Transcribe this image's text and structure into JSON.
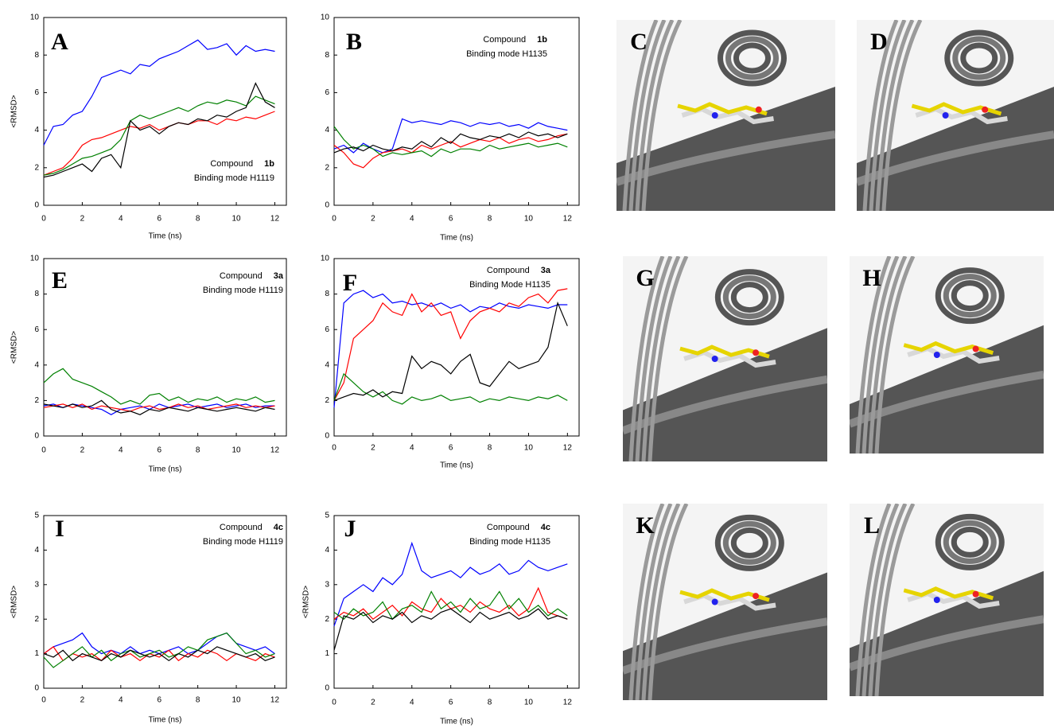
{
  "chart_data": [
    {
      "type": "line",
      "letter": "A",
      "y_label": "<RMSD>",
      "x_label": "Time (ns)",
      "annotation": {
        "compound_label": "Compound",
        "compound": "1b",
        "mode": "Binding mode H1119"
      },
      "x": [
        0,
        0.5,
        1,
        1.5,
        2,
        2.5,
        3,
        3.5,
        4,
        4.5,
        5,
        5.5,
        6,
        6.5,
        7,
        7.5,
        8,
        8.5,
        9,
        9.5,
        10,
        10.5,
        11,
        11.5,
        12
      ],
      "xlim": [
        0,
        12.6
      ],
      "xticks": [
        0,
        2,
        4,
        6,
        8,
        10,
        12
      ],
      "ylim": [
        0,
        10
      ],
      "yticks": [
        0,
        2,
        4,
        6,
        8,
        10
      ],
      "series": [
        {
          "color": "#0000ff",
          "values": [
            3.2,
            4.2,
            4.3,
            4.8,
            5.0,
            5.8,
            6.8,
            7.0,
            7.2,
            7.0,
            7.5,
            7.4,
            7.8,
            8.0,
            8.2,
            8.5,
            8.8,
            8.3,
            8.4,
            8.6,
            8.0,
            8.5,
            8.2,
            8.3,
            8.2
          ]
        },
        {
          "color": "#ff0000",
          "values": [
            1.6,
            1.8,
            2.0,
            2.5,
            3.2,
            3.5,
            3.6,
            3.8,
            4.0,
            4.2,
            4.1,
            4.3,
            4.0,
            4.2,
            4.4,
            4.3,
            4.5,
            4.5,
            4.3,
            4.6,
            4.5,
            4.7,
            4.6,
            4.8,
            5.0
          ]
        },
        {
          "color": "#008000",
          "values": [
            1.6,
            1.7,
            1.9,
            2.2,
            2.5,
            2.6,
            2.8,
            3.0,
            3.5,
            4.5,
            4.8,
            4.6,
            4.8,
            5.0,
            5.2,
            5.0,
            5.3,
            5.5,
            5.4,
            5.6,
            5.5,
            5.3,
            5.8,
            5.6,
            5.4
          ]
        },
        {
          "color": "#000000",
          "values": [
            1.5,
            1.6,
            1.8,
            2.0,
            2.2,
            1.8,
            2.5,
            2.7,
            2.0,
            4.5,
            4.0,
            4.2,
            3.8,
            4.2,
            4.4,
            4.3,
            4.6,
            4.5,
            4.8,
            4.7,
            5.0,
            5.2,
            6.5,
            5.5,
            5.2
          ]
        }
      ]
    },
    {
      "type": "line",
      "letter": "B",
      "x_label": "Time (ns)",
      "annotation": {
        "compound_label": "Compound",
        "compound": "1b",
        "mode": "Binding mode H1135"
      },
      "x": [
        0,
        0.5,
        1,
        1.5,
        2,
        2.5,
        3,
        3.5,
        4,
        4.5,
        5,
        5.5,
        6,
        6.5,
        7,
        7.5,
        8,
        8.5,
        9,
        9.5,
        10,
        10.5,
        11,
        11.5,
        12
      ],
      "xlim": [
        0,
        12.6
      ],
      "xticks": [
        0,
        2,
        4,
        6,
        8,
        10,
        12
      ],
      "ylim": [
        0,
        10
      ],
      "yticks": [
        0,
        2,
        4,
        6,
        8,
        10
      ],
      "series": [
        {
          "color": "#0000ff",
          "values": [
            3.0,
            3.2,
            2.8,
            3.3,
            3.0,
            2.8,
            3.0,
            4.6,
            4.4,
            4.5,
            4.4,
            4.3,
            4.5,
            4.4,
            4.2,
            4.4,
            4.3,
            4.4,
            4.2,
            4.3,
            4.1,
            4.4,
            4.2,
            4.1,
            4.0
          ]
        },
        {
          "color": "#ff0000",
          "values": [
            3.2,
            2.8,
            2.2,
            2.0,
            2.5,
            2.8,
            2.9,
            3.0,
            2.8,
            3.2,
            3.0,
            3.2,
            3.4,
            3.1,
            3.3,
            3.5,
            3.4,
            3.6,
            3.3,
            3.5,
            3.6,
            3.4,
            3.5,
            3.7,
            3.8
          ]
        },
        {
          "color": "#008000",
          "values": [
            4.2,
            3.5,
            3.0,
            3.2,
            3.0,
            2.6,
            2.8,
            2.7,
            2.8,
            2.9,
            2.6,
            3.0,
            2.8,
            3.0,
            3.0,
            2.9,
            3.2,
            3.0,
            3.1,
            3.2,
            3.3,
            3.1,
            3.2,
            3.3,
            3.1
          ]
        },
        {
          "color": "#000000",
          "values": [
            2.8,
            3.0,
            3.1,
            2.9,
            3.2,
            3.0,
            2.9,
            3.1,
            3.0,
            3.4,
            3.1,
            3.6,
            3.3,
            3.8,
            3.6,
            3.5,
            3.7,
            3.6,
            3.8,
            3.6,
            3.9,
            3.7,
            3.8,
            3.6,
            3.8
          ]
        }
      ]
    },
    {
      "type": "line",
      "letter": "E",
      "y_label": "<RMSD>",
      "x_label": "Time (ns)",
      "annotation": {
        "compound_label": "Compound",
        "compound": "3a",
        "mode": "Binding mode H1119"
      },
      "x": [
        0,
        0.5,
        1,
        1.5,
        2,
        2.5,
        3,
        3.5,
        4,
        4.5,
        5,
        5.5,
        6,
        6.5,
        7,
        7.5,
        8,
        8.5,
        9,
        9.5,
        10,
        10.5,
        11,
        11.5,
        12
      ],
      "xlim": [
        0,
        12.6
      ],
      "xticks": [
        0,
        2,
        4,
        6,
        8,
        10,
        12
      ],
      "ylim": [
        0,
        10
      ],
      "yticks": [
        0,
        2,
        4,
        6,
        8,
        10
      ],
      "series": [
        {
          "color": "#0000ff",
          "values": [
            1.7,
            1.8,
            1.6,
            1.8,
            1.7,
            1.6,
            1.5,
            1.2,
            1.5,
            1.6,
            1.7,
            1.5,
            1.8,
            1.6,
            1.7,
            1.8,
            1.6,
            1.7,
            1.8,
            1.6,
            1.7,
            1.8,
            1.6,
            1.7,
            1.7
          ]
        },
        {
          "color": "#ff0000",
          "values": [
            1.6,
            1.7,
            1.8,
            1.6,
            1.8,
            1.5,
            1.7,
            1.6,
            1.5,
            1.4,
            1.6,
            1.7,
            1.5,
            1.6,
            1.8,
            1.6,
            1.7,
            1.5,
            1.6,
            1.7,
            1.8,
            1.6,
            1.7,
            1.6,
            1.7
          ]
        },
        {
          "color": "#008000",
          "values": [
            3.0,
            3.5,
            3.8,
            3.2,
            3.0,
            2.8,
            2.5,
            2.2,
            1.8,
            2.0,
            1.8,
            2.3,
            2.4,
            2.0,
            2.2,
            1.9,
            2.1,
            2.0,
            2.2,
            1.9,
            2.1,
            2.0,
            2.2,
            1.9,
            2.0
          ]
        },
        {
          "color": "#000000",
          "values": [
            1.8,
            1.7,
            1.6,
            1.8,
            1.6,
            1.7,
            2.0,
            1.5,
            1.3,
            1.4,
            1.2,
            1.5,
            1.4,
            1.6,
            1.5,
            1.4,
            1.6,
            1.5,
            1.4,
            1.5,
            1.6,
            1.5,
            1.4,
            1.6,
            1.5
          ]
        }
      ]
    },
    {
      "type": "line",
      "letter": "F",
      "x_label": "Time (ns)",
      "annotation": {
        "compound_label": "Compound",
        "compound": "3a",
        "mode": "Binding Mode H1135"
      },
      "x": [
        0,
        0.5,
        1,
        1.5,
        2,
        2.5,
        3,
        3.5,
        4,
        4.5,
        5,
        5.5,
        6,
        6.5,
        7,
        7.5,
        8,
        8.5,
        9,
        9.5,
        10,
        10.5,
        11,
        11.5,
        12
      ],
      "xlim": [
        0,
        12.6
      ],
      "xticks": [
        0,
        2,
        4,
        6,
        8,
        10,
        12
      ],
      "ylim": [
        0,
        10
      ],
      "yticks": [
        0,
        2,
        4,
        6,
        8,
        10
      ],
      "series": [
        {
          "color": "#0000ff",
          "values": [
            1.6,
            7.5,
            8.0,
            8.2,
            7.8,
            8.0,
            7.5,
            7.6,
            7.4,
            7.5,
            7.3,
            7.5,
            7.2,
            7.4,
            7.0,
            7.3,
            7.2,
            7.5,
            7.3,
            7.2,
            7.4,
            7.3,
            7.2,
            7.4,
            7.4
          ]
        },
        {
          "color": "#ff0000",
          "values": [
            2.0,
            3.0,
            5.5,
            6.0,
            6.5,
            7.5,
            7.0,
            6.8,
            8.0,
            7.0,
            7.5,
            6.8,
            7.0,
            5.5,
            6.5,
            7.0,
            7.2,
            7.0,
            7.5,
            7.3,
            7.8,
            8.0,
            7.5,
            8.2,
            8.3
          ]
        },
        {
          "color": "#008000",
          "values": [
            2.0,
            3.5,
            3.0,
            2.5,
            2.2,
            2.5,
            2.0,
            1.8,
            2.2,
            2.0,
            2.1,
            2.3,
            2.0,
            2.1,
            2.2,
            1.9,
            2.1,
            2.0,
            2.2,
            2.1,
            2.0,
            2.2,
            2.1,
            2.3,
            2.0
          ]
        },
        {
          "color": "#000000",
          "values": [
            2.0,
            2.2,
            2.4,
            2.3,
            2.6,
            2.2,
            2.5,
            2.4,
            4.5,
            3.8,
            4.2,
            4.0,
            3.5,
            4.2,
            4.6,
            3.0,
            2.8,
            3.5,
            4.2,
            3.8,
            4.0,
            4.2,
            5.0,
            7.5,
            6.2
          ]
        }
      ]
    },
    {
      "type": "line",
      "letter": "I",
      "y_label": "<RMSD>",
      "x_label": "Time (ns)",
      "annotation": {
        "compound_label": "Compound",
        "compound": "4c",
        "mode": "Binding mode H1119"
      },
      "x": [
        0,
        0.5,
        1,
        1.5,
        2,
        2.5,
        3,
        3.5,
        4,
        4.5,
        5,
        5.5,
        6,
        6.5,
        7,
        7.5,
        8,
        8.5,
        9,
        9.5,
        10,
        10.5,
        11,
        11.5,
        12
      ],
      "xlim": [
        0,
        12.6
      ],
      "xticks": [
        0,
        2,
        4,
        6,
        8,
        10,
        12
      ],
      "ylim": [
        0,
        5
      ],
      "yticks": [
        0,
        1,
        2,
        3,
        4,
        5
      ],
      "series": [
        {
          "color": "#0000ff",
          "values": [
            1.0,
            1.2,
            1.3,
            1.4,
            1.6,
            1.2,
            1.0,
            1.1,
            1.0,
            1.2,
            1.0,
            1.1,
            1.0,
            1.1,
            1.2,
            1.0,
            1.1,
            1.3,
            1.5,
            1.6,
            1.3,
            1.2,
            1.1,
            1.2,
            1.0
          ]
        },
        {
          "color": "#ff0000",
          "values": [
            1.0,
            1.2,
            0.8,
            1.0,
            0.9,
            1.0,
            0.8,
            1.1,
            0.9,
            1.0,
            0.8,
            1.0,
            0.9,
            1.1,
            0.8,
            1.0,
            0.9,
            1.1,
            1.0,
            0.8,
            1.0,
            0.9,
            0.8,
            1.0,
            0.9
          ]
        },
        {
          "color": "#008000",
          "values": [
            0.9,
            0.6,
            0.8,
            1.0,
            1.2,
            0.9,
            1.1,
            0.8,
            1.0,
            1.1,
            0.9,
            1.0,
            1.1,
            0.9,
            1.0,
            1.2,
            1.1,
            1.4,
            1.5,
            1.6,
            1.3,
            1.0,
            1.1,
            0.9,
            1.0
          ]
        },
        {
          "color": "#000000",
          "values": [
            1.0,
            0.9,
            1.1,
            0.8,
            1.0,
            0.9,
            0.8,
            1.0,
            0.9,
            1.1,
            1.0,
            0.9,
            1.0,
            0.8,
            1.0,
            0.9,
            1.1,
            1.0,
            1.2,
            1.1,
            1.0,
            0.9,
            1.0,
            0.8,
            0.9
          ]
        }
      ]
    },
    {
      "type": "line",
      "letter": "J",
      "y_label": "<RMSD>",
      "x_label": "Time (ns)",
      "annotation": {
        "compound_label": "Compound",
        "compound": "4c",
        "mode": "Binding mode H1135"
      },
      "x": [
        0,
        0.5,
        1,
        1.5,
        2,
        2.5,
        3,
        3.5,
        4,
        4.5,
        5,
        5.5,
        6,
        6.5,
        7,
        7.5,
        8,
        8.5,
        9,
        9.5,
        10,
        10.5,
        11,
        11.5,
        12
      ],
      "xlim": [
        0,
        12.6
      ],
      "xticks": [
        0,
        2,
        4,
        6,
        8,
        10,
        12
      ],
      "ylim": [
        0,
        5
      ],
      "yticks": [
        0,
        1,
        2,
        3,
        4,
        5
      ],
      "series": [
        {
          "color": "#0000ff",
          "values": [
            1.8,
            2.6,
            2.8,
            3.0,
            2.8,
            3.2,
            3.0,
            3.3,
            4.2,
            3.4,
            3.2,
            3.3,
            3.4,
            3.2,
            3.5,
            3.3,
            3.4,
            3.6,
            3.3,
            3.4,
            3.7,
            3.5,
            3.4,
            3.5,
            3.6
          ]
        },
        {
          "color": "#ff0000",
          "values": [
            2.0,
            2.2,
            2.1,
            2.3,
            2.0,
            2.2,
            2.4,
            2.1,
            2.5,
            2.3,
            2.2,
            2.6,
            2.3,
            2.4,
            2.2,
            2.5,
            2.3,
            2.2,
            2.4,
            2.1,
            2.3,
            2.9,
            2.2,
            2.1,
            2.0
          ]
        },
        {
          "color": "#008000",
          "values": [
            2.2,
            2.0,
            2.3,
            2.1,
            2.2,
            2.5,
            2.0,
            2.3,
            2.4,
            2.2,
            2.8,
            2.3,
            2.5,
            2.2,
            2.6,
            2.3,
            2.4,
            2.8,
            2.3,
            2.6,
            2.2,
            2.4,
            2.1,
            2.3,
            2.1
          ]
        },
        {
          "color": "#000000",
          "values": [
            1.1,
            2.1,
            2.0,
            2.2,
            1.9,
            2.1,
            2.0,
            2.2,
            1.9,
            2.1,
            2.0,
            2.2,
            2.3,
            2.1,
            1.9,
            2.2,
            2.0,
            2.1,
            2.2,
            2.0,
            2.1,
            2.3,
            2.0,
            2.1,
            2.0
          ]
        }
      ]
    }
  ],
  "images": [
    {
      "letter": "C"
    },
    {
      "letter": "D"
    },
    {
      "letter": "G"
    },
    {
      "letter": "H"
    },
    {
      "letter": "K"
    },
    {
      "letter": "L"
    }
  ]
}
